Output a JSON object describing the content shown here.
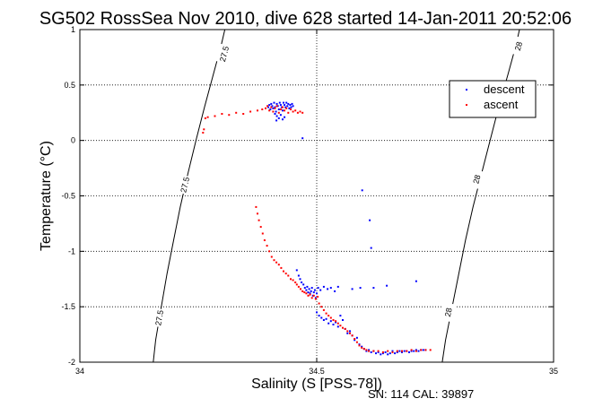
{
  "chart_data": {
    "type": "scatter",
    "title": "SG502 RossSea Nov 2010, dive 628 started 14-Jan-2011 20:52:06",
    "xlabel": "Salinity (S [PSS-78])",
    "ylabel": "Temperature (°C)",
    "xlim": [
      34,
      35
    ],
    "ylim": [
      -2,
      1
    ],
    "x_ticks": [
      "34",
      "34.5",
      "35"
    ],
    "y_ticks": [
      "1",
      "0.5",
      "0",
      "-0.5",
      "-1",
      "-1.5",
      "-2"
    ],
    "grid": true,
    "legend_position": "top-right",
    "footer": "SN: 114  CAL: 39897",
    "contours": [
      {
        "label": "27.5",
        "color": "#000000",
        "points": [
          [
            34.155,
            -2
          ],
          [
            34.16,
            -1.8
          ],
          [
            34.172,
            -1.5
          ],
          [
            34.184,
            -1.2
          ],
          [
            34.198,
            -0.9
          ],
          [
            34.212,
            -0.6
          ],
          [
            34.228,
            -0.3
          ],
          [
            34.245,
            0
          ],
          [
            34.263,
            0.3
          ],
          [
            34.282,
            0.6
          ],
          [
            34.298,
            0.85
          ],
          [
            34.306,
            1
          ]
        ],
        "label_positions": [
          [
            34.168,
            -1.6
          ],
          [
            34.222,
            -0.4
          ],
          [
            34.305,
            0.78
          ]
        ]
      },
      {
        "label": "28",
        "color": "#000000",
        "points": [
          [
            34.765,
            -2
          ],
          [
            34.772,
            -1.8
          ],
          [
            34.786,
            -1.5
          ],
          [
            34.8,
            -1.2
          ],
          [
            34.814,
            -0.9
          ],
          [
            34.83,
            -0.6
          ],
          [
            34.848,
            -0.3
          ],
          [
            34.866,
            0
          ],
          [
            34.884,
            0.3
          ],
          [
            34.904,
            0.6
          ],
          [
            34.92,
            0.85
          ],
          [
            34.928,
            1
          ]
        ],
        "label_positions": [
          [
            34.778,
            -1.55
          ],
          [
            34.838,
            -0.35
          ],
          [
            34.926,
            0.85
          ]
        ]
      }
    ],
    "series": [
      {
        "name": "descent",
        "color": "#0000ff",
        "marker": ".",
        "points": [
          [
            34.398,
            0.3
          ],
          [
            34.4,
            0.32
          ],
          [
            34.402,
            0.28
          ],
          [
            34.404,
            0.33
          ],
          [
            34.406,
            0.31
          ],
          [
            34.408,
            0.29
          ],
          [
            34.41,
            0.34
          ],
          [
            34.412,
            0.3
          ],
          [
            34.414,
            0.26
          ],
          [
            34.416,
            0.33
          ],
          [
            34.418,
            0.31
          ],
          [
            34.42,
            0.28
          ],
          [
            34.422,
            0.34
          ],
          [
            34.424,
            0.32
          ],
          [
            34.426,
            0.3
          ],
          [
            34.428,
            0.27
          ],
          [
            34.43,
            0.34
          ],
          [
            34.432,
            0.32
          ],
          [
            34.434,
            0.3
          ],
          [
            34.436,
            0.34
          ],
          [
            34.438,
            0.31
          ],
          [
            34.44,
            0.33
          ],
          [
            34.442,
            0.29
          ],
          [
            34.444,
            0.32
          ],
          [
            34.446,
            0.3
          ],
          [
            34.448,
            0.33
          ],
          [
            34.45,
            0.31
          ],
          [
            34.412,
            0.24
          ],
          [
            34.416,
            0.22
          ],
          [
            34.42,
            0.2
          ],
          [
            34.424,
            0.23
          ],
          [
            34.428,
            0.19
          ],
          [
            34.432,
            0.21
          ],
          [
            34.415,
            0.18
          ],
          [
            34.47,
            0.02
          ],
          [
            34.596,
            -0.45
          ],
          [
            34.612,
            -0.72
          ],
          [
            34.615,
            -0.97
          ],
          [
            34.71,
            -1.27
          ],
          [
            34.458,
            -1.17
          ],
          [
            34.462,
            -1.22
          ],
          [
            34.465,
            -1.25
          ],
          [
            34.468,
            -1.28
          ],
          [
            34.472,
            -1.3
          ],
          [
            34.475,
            -1.33
          ],
          [
            34.478,
            -1.35
          ],
          [
            34.48,
            -1.32
          ],
          [
            34.482,
            -1.37
          ],
          [
            34.484,
            -1.34
          ],
          [
            34.486,
            -1.38
          ],
          [
            34.488,
            -1.36
          ],
          [
            34.49,
            -1.33
          ],
          [
            34.492,
            -1.4
          ],
          [
            34.494,
            -1.37
          ],
          [
            34.496,
            -1.35
          ],
          [
            34.498,
            -1.42
          ],
          [
            34.5,
            -1.38
          ],
          [
            34.503,
            -1.33
          ],
          [
            34.508,
            -1.35
          ],
          [
            34.515,
            -1.32
          ],
          [
            34.523,
            -1.34
          ],
          [
            34.53,
            -1.33
          ],
          [
            34.538,
            -1.36
          ],
          [
            34.545,
            -1.32
          ],
          [
            34.575,
            -1.34
          ],
          [
            34.592,
            -1.33
          ],
          [
            34.62,
            -1.33
          ],
          [
            34.648,
            -1.31
          ],
          [
            34.5,
            -1.55
          ],
          [
            34.505,
            -1.58
          ],
          [
            34.51,
            -1.6
          ],
          [
            34.515,
            -1.62
          ],
          [
            34.52,
            -1.61
          ],
          [
            34.525,
            -1.65
          ],
          [
            34.53,
            -1.63
          ],
          [
            34.535,
            -1.66
          ],
          [
            34.54,
            -1.64
          ],
          [
            34.545,
            -1.68
          ],
          [
            34.55,
            -1.58
          ],
          [
            34.555,
            -1.62
          ],
          [
            34.56,
            -1.7
          ],
          [
            34.565,
            -1.74
          ],
          [
            34.57,
            -1.72
          ],
          [
            34.575,
            -1.76
          ],
          [
            34.58,
            -1.8
          ],
          [
            34.585,
            -1.78
          ],
          [
            34.59,
            -1.84
          ],
          [
            34.595,
            -1.86
          ],
          [
            34.6,
            -1.88
          ],
          [
            34.605,
            -1.9
          ],
          [
            34.61,
            -1.89
          ],
          [
            34.615,
            -1.91
          ],
          [
            34.62,
            -1.9
          ],
          [
            34.625,
            -1.92
          ],
          [
            34.63,
            -1.91
          ],
          [
            34.635,
            -1.93
          ],
          [
            34.64,
            -1.92
          ],
          [
            34.645,
            -1.91
          ],
          [
            34.65,
            -1.93
          ],
          [
            34.655,
            -1.92
          ],
          [
            34.66,
            -1.9
          ],
          [
            34.665,
            -1.92
          ],
          [
            34.67,
            -1.91
          ],
          [
            34.675,
            -1.9
          ],
          [
            34.68,
            -1.91
          ],
          [
            34.685,
            -1.9
          ],
          [
            34.69,
            -1.9
          ],
          [
            34.695,
            -1.91
          ],
          [
            34.7,
            -1.9
          ],
          [
            34.705,
            -1.9
          ],
          [
            34.71,
            -1.89
          ],
          [
            34.715,
            -1.9
          ],
          [
            34.72,
            -1.89
          ],
          [
            34.725,
            -1.89
          ],
          [
            34.73,
            -1.89
          ]
        ]
      },
      {
        "name": "ascent",
        "color": "#ff0000",
        "marker": ".",
        "points": [
          [
            34.26,
            0.07
          ],
          [
            34.262,
            0.1
          ],
          [
            34.265,
            0.2
          ],
          [
            34.27,
            0.21
          ],
          [
            34.285,
            0.22
          ],
          [
            34.3,
            0.24
          ],
          [
            34.315,
            0.23
          ],
          [
            34.33,
            0.25
          ],
          [
            34.345,
            0.24
          ],
          [
            34.36,
            0.26
          ],
          [
            34.375,
            0.27
          ],
          [
            34.385,
            0.28
          ],
          [
            34.392,
            0.29
          ],
          [
            34.396,
            0.31
          ],
          [
            34.4,
            0.27
          ],
          [
            34.404,
            0.3
          ],
          [
            34.408,
            0.26
          ],
          [
            34.412,
            0.29
          ],
          [
            34.416,
            0.31
          ],
          [
            34.42,
            0.25
          ],
          [
            34.424,
            0.28
          ],
          [
            34.428,
            0.3
          ],
          [
            34.432,
            0.27
          ],
          [
            34.436,
            0.29
          ],
          [
            34.44,
            0.25
          ],
          [
            34.445,
            0.28
          ],
          [
            34.45,
            0.26
          ],
          [
            34.455,
            0.27
          ],
          [
            34.46,
            0.25
          ],
          [
            34.465,
            0.26
          ],
          [
            34.47,
            0.25
          ],
          [
            34.372,
            -0.6
          ],
          [
            34.375,
            -0.66
          ],
          [
            34.378,
            -0.72
          ],
          [
            34.382,
            -0.78
          ],
          [
            34.386,
            -0.84
          ],
          [
            34.39,
            -0.9
          ],
          [
            34.395,
            -0.95
          ],
          [
            34.4,
            -1.0
          ],
          [
            34.405,
            -1.05
          ],
          [
            34.41,
            -1.08
          ],
          [
            34.415,
            -1.1
          ],
          [
            34.42,
            -1.12
          ],
          [
            34.425,
            -1.15
          ],
          [
            34.43,
            -1.18
          ],
          [
            34.435,
            -1.2
          ],
          [
            34.44,
            -1.22
          ],
          [
            34.445,
            -1.25
          ],
          [
            34.45,
            -1.26
          ],
          [
            34.455,
            -1.28
          ],
          [
            34.458,
            -1.3
          ],
          [
            34.462,
            -1.32
          ],
          [
            34.466,
            -1.34
          ],
          [
            34.47,
            -1.36
          ],
          [
            34.474,
            -1.37
          ],
          [
            34.478,
            -1.38
          ],
          [
            34.482,
            -1.4
          ],
          [
            34.486,
            -1.39
          ],
          [
            34.49,
            -1.42
          ],
          [
            34.494,
            -1.4
          ],
          [
            34.498,
            -1.43
          ],
          [
            34.502,
            -1.41
          ],
          [
            34.505,
            -1.47
          ],
          [
            34.51,
            -1.5
          ],
          [
            34.515,
            -1.53
          ],
          [
            34.52,
            -1.56
          ],
          [
            34.525,
            -1.58
          ],
          [
            34.53,
            -1.6
          ],
          [
            34.535,
            -1.62
          ],
          [
            34.54,
            -1.63
          ],
          [
            34.545,
            -1.65
          ],
          [
            34.55,
            -1.67
          ],
          [
            34.555,
            -1.69
          ],
          [
            34.56,
            -1.7
          ],
          [
            34.565,
            -1.72
          ],
          [
            34.57,
            -1.74
          ],
          [
            34.575,
            -1.76
          ],
          [
            34.58,
            -1.79
          ],
          [
            34.585,
            -1.82
          ],
          [
            34.59,
            -1.85
          ],
          [
            34.595,
            -1.87
          ],
          [
            34.6,
            -1.88
          ],
          [
            34.605,
            -1.89
          ],
          [
            34.61,
            -1.9
          ],
          [
            34.62,
            -1.9
          ],
          [
            34.63,
            -1.9
          ],
          [
            34.64,
            -1.91
          ],
          [
            34.65,
            -1.9
          ],
          [
            34.66,
            -1.91
          ],
          [
            34.67,
            -1.9
          ],
          [
            34.68,
            -1.9
          ],
          [
            34.69,
            -1.9
          ],
          [
            34.7,
            -1.89
          ],
          [
            34.71,
            -1.9
          ],
          [
            34.72,
            -1.89
          ],
          [
            34.73,
            -1.89
          ],
          [
            34.74,
            -1.89
          ]
        ]
      }
    ]
  }
}
